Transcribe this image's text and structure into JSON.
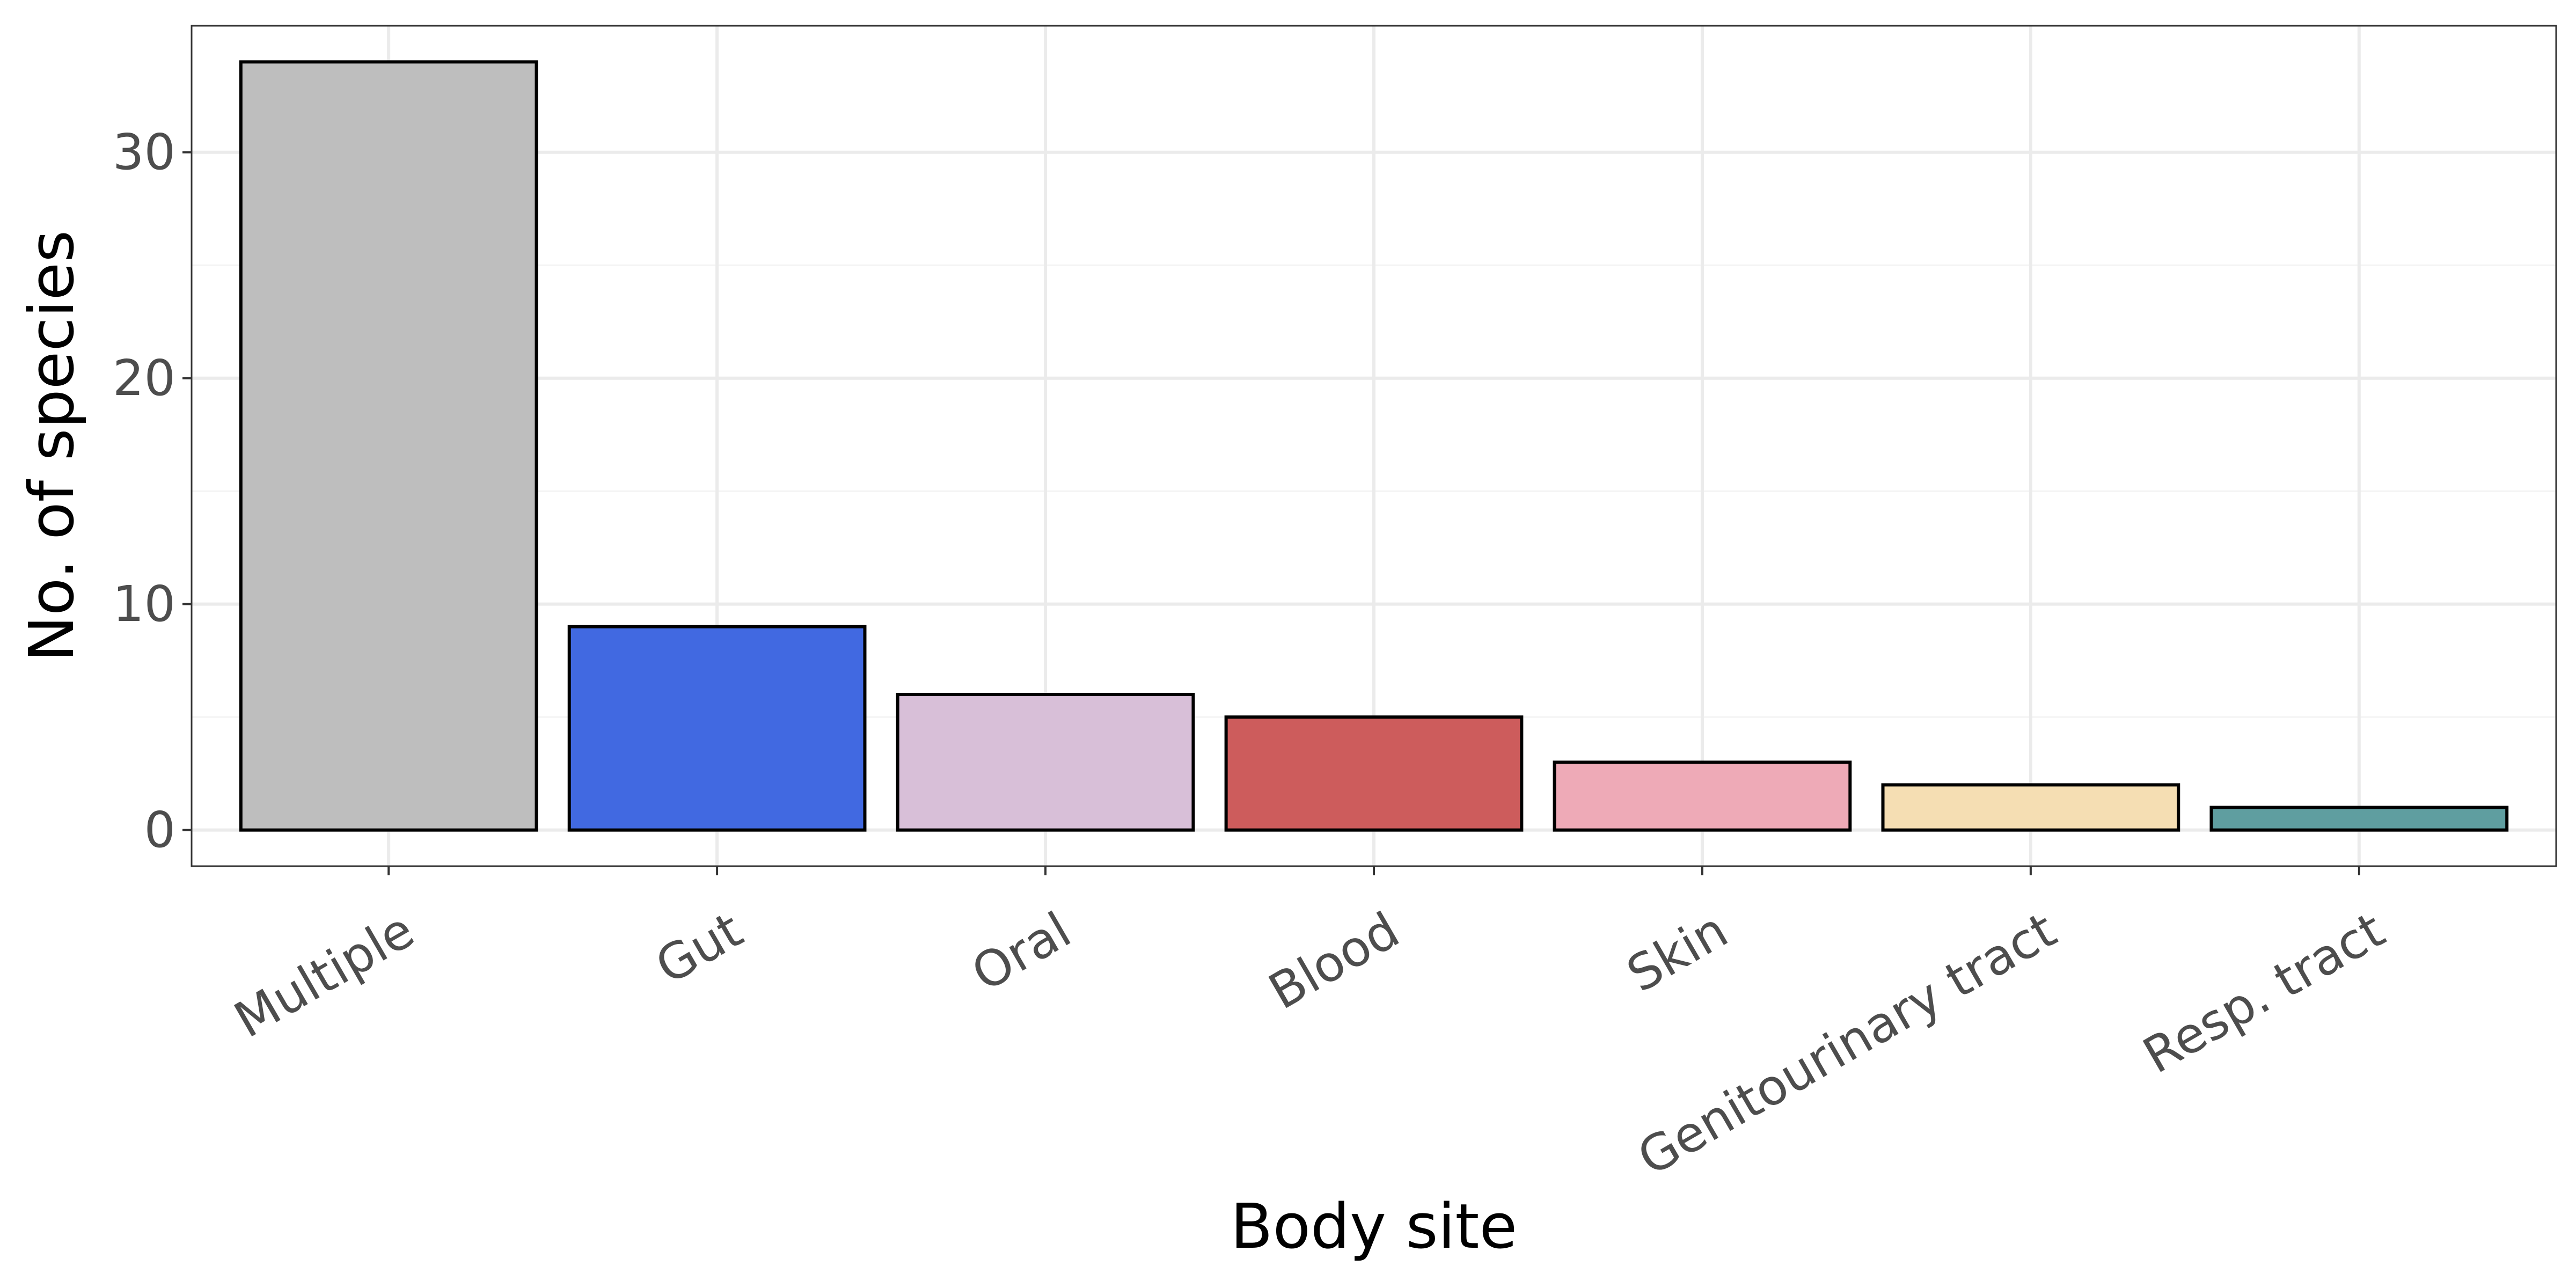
{
  "chart_data": {
    "type": "bar",
    "title": "",
    "xlabel": "Body site",
    "ylabel": "No. of species",
    "categories": [
      "Multiple",
      "Gut",
      "Oral",
      "Blood",
      "Skin",
      "Genitourinary tract",
      "Resp. tract"
    ],
    "values": [
      34,
      9,
      6,
      5,
      3,
      2,
      1
    ],
    "colors": [
      "#bebebe",
      "#4169e1",
      "#d8bfd8",
      "#cd5c5c",
      "#eeaab7",
      "#f5deb3",
      "#5f9ea0"
    ],
    "ylim": [
      -1.6,
      35.6
    ],
    "yticks": [
      0,
      10,
      20,
      30
    ],
    "grid": true,
    "legend": "none",
    "theme": {
      "bar_edge": "#000000",
      "grid_major": "#ebebeb",
      "grid_minor": "#f4f4f4",
      "tick_label": "#4d4d4d",
      "axis_title": "#000000",
      "panel_border": "#333333"
    }
  }
}
